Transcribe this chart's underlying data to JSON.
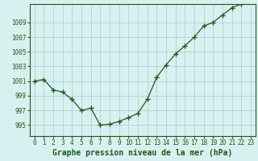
{
  "x": [
    0,
    1,
    2,
    3,
    4,
    5,
    6,
    7,
    8,
    9,
    10,
    11,
    12,
    13,
    14,
    15,
    16,
    17,
    18,
    19,
    20,
    21,
    22,
    23
  ],
  "y": [
    1001.0,
    1001.2,
    999.8,
    999.5,
    998.5,
    997.0,
    997.3,
    995.0,
    995.1,
    995.5,
    996.0,
    996.6,
    998.5,
    1001.5,
    1003.2,
    1004.7,
    1005.8,
    1007.0,
    1008.5,
    1009.0,
    1010.0,
    1011.0,
    1011.5,
    1012.0
  ],
  "line_color": "#1a5c1a",
  "marker": "+",
  "marker_size": 4,
  "bg_color": "#d9f0f0",
  "grid_color": "#b0d8d8",
  "xlabel": "Graphe pression niveau de la mer (hPa)",
  "xlabel_fontsize": 7,
  "ylabel_ticks": [
    995,
    997,
    999,
    1001,
    1003,
    1005,
    1007,
    1009
  ],
  "ylim": [
    993.5,
    1011.5
  ],
  "xlim": [
    -0.5,
    23.5
  ],
  "xticks": [
    0,
    1,
    2,
    3,
    4,
    5,
    6,
    7,
    8,
    9,
    10,
    11,
    12,
    13,
    14,
    15,
    16,
    17,
    18,
    19,
    20,
    21,
    22,
    23
  ],
  "tick_fontsize": 5.5
}
